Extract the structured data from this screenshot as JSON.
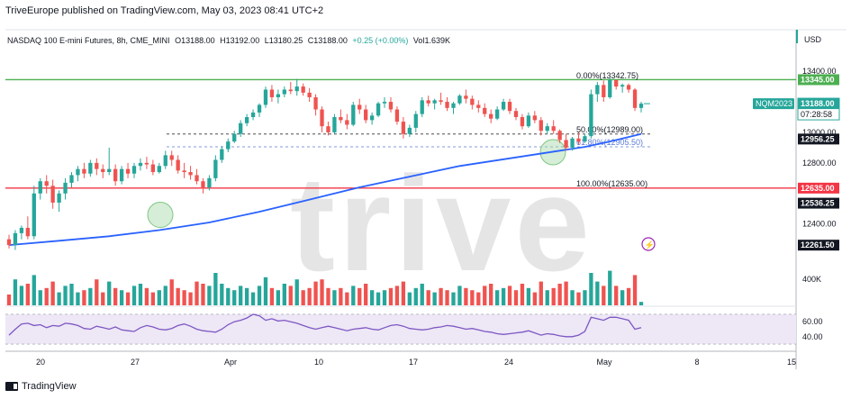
{
  "header": {
    "publisher": "TriveEurope published on TradingView.com, May 03, 2023 08:41 UTC+2"
  },
  "legend": {
    "symbol": "NASDAQ 100 E-mini Futures, 8h, CME_MINI",
    "open_label": "O",
    "open": "13188.00",
    "high_label": "H",
    "high": "13192.00",
    "low_label": "L",
    "low": "13180.25",
    "close_label": "C",
    "close": "13188.00",
    "change": "+0.25 (+0.00%)",
    "volume_label": "Vol",
    "volume": "1.639K"
  },
  "currency": "USD",
  "watermark": "trive",
  "footer": {
    "brand": "TradingView"
  },
  "colors": {
    "up": "#26a69a",
    "down": "#ef5350",
    "ma": "#2962ff",
    "rsi": "#7e57c2",
    "rsi_band": "#ede7f6",
    "resistance": "#4caf50",
    "support": "#f23645",
    "fib": "#5b7bd5",
    "watermark": "#e5e5e5"
  },
  "chart_data": {
    "type": "candlestick",
    "x_ticks": [
      "20",
      "27",
      "Apr",
      "10",
      "17",
      "24",
      "May",
      "8",
      "15"
    ],
    "price_axis": {
      "ylim": [
        12180,
        13560
      ],
      "ticks": [
        "13400.00",
        "13000.00",
        "12800.00",
        "12400.00"
      ]
    },
    "price_labels": [
      {
        "text": "13345.00",
        "value": 13345,
        "type": "resistance"
      },
      {
        "text": "13188.00",
        "value": 13188,
        "type": "last",
        "countdown": "07:28:58",
        "symbol_tag": "NQM2023"
      },
      {
        "text": "12956.25",
        "value": 12956.25,
        "type": "level"
      },
      {
        "text": "12635.00",
        "value": 12635,
        "type": "support"
      },
      {
        "text": "12536.25",
        "value": 12536.25,
        "type": "level"
      },
      {
        "text": "12261.50",
        "value": 12261.5,
        "type": "level"
      }
    ],
    "horizontal_lines": [
      {
        "value": 13345,
        "style": "solid",
        "color": "resistance"
      },
      {
        "value": 12635,
        "style": "solid",
        "color": "support"
      },
      {
        "value": 12989,
        "style": "dashed",
        "color": "dark"
      },
      {
        "value": 12905.5,
        "style": "dashed",
        "color": "fib"
      }
    ],
    "fibonacci": [
      {
        "text": "0.00%(13342.75)",
        "value": 13342.75
      },
      {
        "text": "50.00%(12989.00)",
        "value": 12989.0
      },
      {
        "text": "61.80%(12905.50)",
        "value": 12905.5
      },
      {
        "text": "100.00%(12635.00)",
        "value": 12635.0
      }
    ],
    "candles_ohlc": [
      [
        12300,
        12330,
        12240,
        12262
      ],
      [
        12262,
        12360,
        12230,
        12340
      ],
      [
        12340,
        12390,
        12300,
        12375
      ],
      [
        12375,
        12450,
        12300,
        12320
      ],
      [
        12320,
        12650,
        12300,
        12600
      ],
      [
        12600,
        12700,
        12560,
        12680
      ],
      [
        12680,
        12720,
        12600,
        12650
      ],
      [
        12650,
        12690,
        12500,
        12540
      ],
      [
        12540,
        12620,
        12480,
        12600
      ],
      [
        12600,
        12700,
        12560,
        12670
      ],
      [
        12670,
        12740,
        12640,
        12720
      ],
      [
        12720,
        12780,
        12680,
        12760
      ],
      [
        12760,
        12800,
        12700,
        12730
      ],
      [
        12730,
        12820,
        12710,
        12800
      ],
      [
        12800,
        12830,
        12720,
        12760
      ],
      [
        12760,
        12790,
        12700,
        12740
      ],
      [
        12740,
        12900,
        12720,
        12760
      ],
      [
        12760,
        12790,
        12650,
        12680
      ],
      [
        12680,
        12780,
        12660,
        12760
      ],
      [
        12760,
        12800,
        12700,
        12730
      ],
      [
        12730,
        12800,
        12700,
        12780
      ],
      [
        12780,
        12830,
        12750,
        12800
      ],
      [
        12800,
        12840,
        12760,
        12790
      ],
      [
        12790,
        12820,
        12720,
        12740
      ],
      [
        12740,
        12800,
        12730,
        12780
      ],
      [
        12780,
        12880,
        12760,
        12850
      ],
      [
        12850,
        12880,
        12780,
        12820
      ],
      [
        12820,
        12850,
        12730,
        12750
      ],
      [
        12750,
        12800,
        12700,
        12740
      ],
      [
        12740,
        12780,
        12690,
        12720
      ],
      [
        12720,
        12760,
        12660,
        12680
      ],
      [
        12680,
        12700,
        12600,
        12640
      ],
      [
        12640,
        12720,
        12620,
        12700
      ],
      [
        12700,
        12850,
        12680,
        12820
      ],
      [
        12820,
        12910,
        12800,
        12890
      ],
      [
        12890,
        12960,
        12870,
        12940
      ],
      [
        12940,
        13010,
        12930,
        12990
      ],
      [
        12990,
        13080,
        12970,
        13060
      ],
      [
        13060,
        13120,
        13040,
        13100
      ],
      [
        13100,
        13150,
        13080,
        13130
      ],
      [
        13130,
        13190,
        13100,
        13180
      ],
      [
        13180,
        13300,
        13160,
        13280
      ],
      [
        13280,
        13310,
        13200,
        13230
      ],
      [
        13230,
        13280,
        13190,
        13250
      ],
      [
        13250,
        13300,
        13230,
        13280
      ],
      [
        13280,
        13330,
        13250,
        13270
      ],
      [
        13270,
        13350,
        13240,
        13300
      ],
      [
        13300,
        13320,
        13240,
        13260
      ],
      [
        13260,
        13290,
        13200,
        13230
      ],
      [
        13230,
        13250,
        13110,
        13150
      ],
      [
        13150,
        13170,
        13000,
        13040
      ],
      [
        13040,
        13070,
        12980,
        13000
      ],
      [
        13000,
        13120,
        12990,
        13100
      ],
      [
        13100,
        13150,
        13060,
        13080
      ],
      [
        13080,
        13120,
        13020,
        13050
      ],
      [
        13050,
        13200,
        13040,
        13180
      ],
      [
        13180,
        13220,
        13120,
        13150
      ],
      [
        13150,
        13180,
        13060,
        13080
      ],
      [
        13080,
        13130,
        13050,
        13110
      ],
      [
        13110,
        13200,
        13100,
        13190
      ],
      [
        13190,
        13230,
        13160,
        13200
      ],
      [
        13200,
        13230,
        13130,
        13150
      ],
      [
        13150,
        13170,
        13050,
        13070
      ],
      [
        13070,
        13100,
        12960,
        12990
      ],
      [
        12990,
        13050,
        12970,
        13030
      ],
      [
        13030,
        13140,
        13000,
        13120
      ],
      [
        13120,
        13230,
        13100,
        13210
      ],
      [
        13210,
        13240,
        13170,
        13190
      ],
      [
        13190,
        13220,
        13150,
        13210
      ],
      [
        13210,
        13260,
        13180,
        13200
      ],
      [
        13200,
        13230,
        13140,
        13160
      ],
      [
        13160,
        13200,
        13120,
        13190
      ],
      [
        13190,
        13250,
        13180,
        13240
      ],
      [
        13240,
        13280,
        13190,
        13220
      ],
      [
        13220,
        13240,
        13150,
        13180
      ],
      [
        13180,
        13210,
        13130,
        13160
      ],
      [
        13160,
        13190,
        13100,
        13120
      ],
      [
        13120,
        13150,
        13060,
        13090
      ],
      [
        13090,
        13170,
        13080,
        13150
      ],
      [
        13150,
        13220,
        13140,
        13200
      ],
      [
        13200,
        13220,
        13120,
        13140
      ],
      [
        13140,
        13160,
        13080,
        13100
      ],
      [
        13100,
        13120,
        13020,
        13040
      ],
      [
        13040,
        13130,
        13030,
        13110
      ],
      [
        13110,
        13140,
        13060,
        13080
      ],
      [
        13080,
        13100,
        12980,
        13010
      ],
      [
        13010,
        13060,
        12990,
        13040
      ],
      [
        13040,
        13080,
        12990,
        13010
      ],
      [
        13010,
        13020,
        12930,
        12950
      ],
      [
        12950,
        12990,
        12880,
        12900
      ],
      [
        12900,
        12970,
        12880,
        12960
      ],
      [
        12960,
        13000,
        12920,
        12940
      ],
      [
        12940,
        12990,
        12930,
        12975
      ],
      [
        12975,
        13280,
        12960,
        13250
      ],
      [
        13250,
        13330,
        13200,
        13310
      ],
      [
        13310,
        13340,
        13200,
        13230
      ],
      [
        13230,
        13360,
        13220,
        13342
      ],
      [
        13342,
        13345,
        13280,
        13300
      ],
      [
        13300,
        13320,
        13260,
        13310
      ],
      [
        13310,
        13320,
        13260,
        13280
      ],
      [
        13280,
        13290,
        13140,
        13160
      ],
      [
        13160,
        13200,
        13130,
        13188
      ]
    ],
    "moving_average": [
      [
        0,
        12262
      ],
      [
        8,
        12290
      ],
      [
        16,
        12320
      ],
      [
        24,
        12360
      ],
      [
        32,
        12410
      ],
      [
        40,
        12480
      ],
      [
        48,
        12560
      ],
      [
        56,
        12640
      ],
      [
        64,
        12710
      ],
      [
        72,
        12780
      ],
      [
        80,
        12830
      ],
      [
        88,
        12880
      ],
      [
        92,
        12905
      ],
      [
        96,
        12940
      ],
      [
        101,
        12990
      ]
    ],
    "volume": {
      "tick": "400K",
      "bars": [
        0.25,
        0.6,
        0.45,
        0.5,
        0.7,
        0.35,
        0.4,
        0.55,
        0.3,
        0.45,
        0.5,
        0.3,
        0.35,
        0.4,
        0.6,
        0.3,
        0.55,
        0.4,
        0.35,
        0.3,
        0.45,
        0.5,
        0.4,
        0.3,
        0.35,
        0.45,
        0.6,
        0.4,
        0.35,
        0.3,
        0.55,
        0.5,
        0.45,
        0.75,
        0.5,
        0.4,
        0.35,
        0.45,
        0.4,
        0.3,
        0.45,
        0.65,
        0.4,
        0.35,
        0.5,
        0.45,
        0.6,
        0.35,
        0.4,
        0.55,
        0.6,
        0.4,
        0.35,
        0.4,
        0.3,
        0.45,
        0.4,
        0.5,
        0.35,
        0.3,
        0.35,
        0.4,
        0.45,
        0.55,
        0.3,
        0.4,
        0.5,
        0.35,
        0.3,
        0.4,
        0.35,
        0.3,
        0.45,
        0.4,
        0.35,
        0.3,
        0.45,
        0.5,
        0.35,
        0.4,
        0.45,
        0.35,
        0.5,
        0.4,
        0.3,
        0.55,
        0.35,
        0.4,
        0.5,
        0.55,
        0.35,
        0.3,
        0.35,
        0.75,
        0.55,
        0.45,
        0.8,
        0.45,
        0.35,
        0.4,
        0.7,
        0.08
      ]
    },
    "rsi": {
      "ticks": [
        "60.00",
        "40.00"
      ],
      "levels": [
        70,
        30
      ],
      "ylim": [
        24,
        76
      ],
      "values": [
        42,
        50,
        57,
        58,
        55,
        56,
        52,
        55,
        54,
        58,
        57,
        55,
        51,
        50,
        54,
        52,
        50,
        53,
        49,
        48,
        47,
        52,
        55,
        53,
        50,
        49,
        51,
        55,
        57,
        54,
        50,
        48,
        47,
        46,
        50,
        56,
        60,
        62,
        65,
        70,
        68,
        62,
        64,
        61,
        62,
        60,
        58,
        55,
        52,
        50,
        52,
        54,
        52,
        50,
        48,
        50,
        51,
        52,
        50,
        49,
        52,
        55,
        56,
        54,
        51,
        50,
        49,
        50,
        52,
        53,
        55,
        54,
        52,
        50,
        51,
        49,
        47,
        46,
        44,
        43,
        44,
        45,
        46,
        48,
        45,
        42,
        44,
        43,
        41,
        40,
        40,
        42,
        47,
        66,
        64,
        62,
        66,
        66,
        64,
        62,
        50,
        52
      ]
    }
  }
}
